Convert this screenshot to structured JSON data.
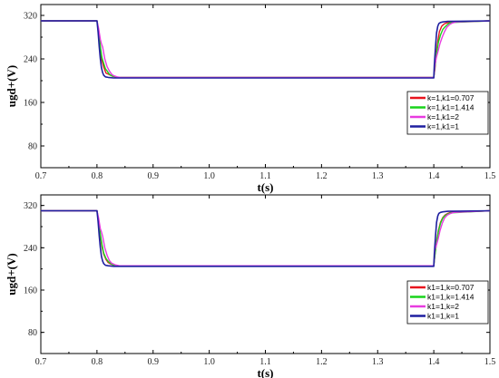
{
  "chart_data": [
    {
      "type": "line",
      "xlabel": "t(s)",
      "ylabel": "ugd+(V)",
      "xlim": [
        0.7,
        1.5
      ],
      "ylim": [
        40,
        340
      ],
      "xticks": [
        "0.7",
        "0.8",
        "0.9",
        "1.0",
        "1.1",
        "1.2",
        "1.3",
        "1.4",
        "1.5"
      ],
      "yticks": [
        "80",
        "160",
        "240",
        "320"
      ],
      "grid": false,
      "legend_position": "bottom-right",
      "series": [
        {
          "name": "k=1,k1=0.707",
          "color": "#e8141d",
          "x": [
            0.7,
            0.8,
            0.803,
            0.806,
            0.808,
            0.812,
            0.816,
            0.82,
            0.824,
            0.828,
            0.832,
            0.84,
            1.4,
            1.402,
            1.404,
            1.407,
            1.41,
            1.414,
            1.418,
            1.422,
            1.427,
            1.432,
            1.5
          ],
          "y": [
            310,
            310,
            292,
            262,
            240,
            225,
            214,
            212,
            210,
            208,
            207,
            206,
            206,
            222,
            246,
            272,
            290,
            300,
            304,
            306,
            307,
            308,
            310
          ]
        },
        {
          "name": "k=1,k1=1.414",
          "color": "#19d31c",
          "x": [
            0.7,
            0.8,
            0.803,
            0.806,
            0.809,
            0.812,
            0.815,
            0.818,
            0.822,
            0.826,
            0.83,
            0.836,
            1.4,
            1.402,
            1.405,
            1.408,
            1.412,
            1.416,
            1.42,
            1.424,
            1.428,
            1.433,
            1.5
          ],
          "y": [
            310,
            310,
            292,
            262,
            242,
            232,
            222,
            218,
            212,
            209,
            208,
            206,
            206,
            226,
            250,
            270,
            284,
            294,
            299,
            303,
            306,
            307,
            310
          ]
        },
        {
          "name": "k=1,k1=2",
          "color": "#e83be0",
          "x": [
            0.7,
            0.8,
            0.803,
            0.806,
            0.808,
            0.81,
            0.814,
            0.818,
            0.822,
            0.826,
            0.83,
            0.836,
            0.842,
            1.4,
            1.402,
            1.405,
            1.408,
            1.411,
            1.415,
            1.419,
            1.423,
            1.428,
            1.433,
            1.44,
            1.5
          ],
          "y": [
            310,
            310,
            296,
            276,
            268,
            262,
            240,
            226,
            218,
            212,
            209,
            207,
            206,
            206,
            230,
            244,
            256,
            268,
            280,
            290,
            298,
            303,
            306,
            308,
            310
          ]
        },
        {
          "name": "k=1,k1=1",
          "color": "#1f1fa0",
          "x": [
            0.7,
            0.8,
            0.802,
            0.804,
            0.806,
            0.808,
            0.81,
            0.812,
            0.815,
            0.82,
            0.83,
            1.4,
            1.401,
            1.403,
            1.405,
            1.407,
            1.409,
            1.412,
            1.416,
            1.425,
            1.5
          ],
          "y": [
            310,
            310,
            290,
            262,
            240,
            224,
            215,
            210,
            207,
            206,
            205,
            205,
            228,
            262,
            288,
            300,
            305,
            307,
            308,
            309,
            310
          ]
        }
      ]
    },
    {
      "type": "line",
      "xlabel": "t(s)",
      "ylabel": "ugd+(V)",
      "xlim": [
        0.7,
        1.5
      ],
      "ylim": [
        40,
        340
      ],
      "xticks": [
        "0.7",
        "0.8",
        "0.9",
        "1.0",
        "1.1",
        "1.2",
        "1.3",
        "1.4",
        "1.5"
      ],
      "yticks": [
        "80",
        "160",
        "240",
        "320"
      ],
      "grid": false,
      "legend_position": "bottom-right",
      "series": [
        {
          "name": "k1=1,k=0.707",
          "color": "#e8141d",
          "x": [
            0.7,
            0.8,
            0.803,
            0.806,
            0.809,
            0.812,
            0.816,
            0.82,
            0.825,
            0.83,
            0.838,
            1.4,
            1.402,
            1.405,
            1.408,
            1.412,
            1.416,
            1.42,
            1.425,
            1.43,
            1.5
          ],
          "y": [
            310,
            310,
            290,
            262,
            242,
            228,
            218,
            212,
            209,
            207,
            206,
            206,
            228,
            252,
            272,
            288,
            297,
            302,
            305,
            307,
            310
          ]
        },
        {
          "name": "k1=1,k=1.414",
          "color": "#19d31c",
          "x": [
            0.7,
            0.8,
            0.803,
            0.806,
            0.809,
            0.812,
            0.816,
            0.82,
            0.825,
            0.83,
            0.838,
            1.4,
            1.402,
            1.405,
            1.408,
            1.412,
            1.416,
            1.42,
            1.425,
            1.43,
            1.5
          ],
          "y": [
            310,
            310,
            292,
            266,
            246,
            230,
            220,
            214,
            210,
            207,
            206,
            206,
            226,
            250,
            270,
            286,
            296,
            301,
            304,
            306,
            310
          ]
        },
        {
          "name": "k1=1,k=2",
          "color": "#e83be0",
          "x": [
            0.7,
            0.8,
            0.803,
            0.806,
            0.808,
            0.81,
            0.814,
            0.818,
            0.822,
            0.826,
            0.832,
            0.84,
            1.4,
            1.402,
            1.405,
            1.408,
            1.411,
            1.415,
            1.419,
            1.424,
            1.43,
            1.436,
            1.5
          ],
          "y": [
            310,
            310,
            296,
            276,
            270,
            262,
            240,
            226,
            216,
            211,
            208,
            206,
            206,
            236,
            246,
            258,
            272,
            286,
            296,
            302,
            305,
            307,
            310
          ]
        },
        {
          "name": "k1=1,k=1",
          "color": "#1f1fa0",
          "x": [
            0.7,
            0.8,
            0.802,
            0.804,
            0.806,
            0.808,
            0.81,
            0.812,
            0.815,
            0.82,
            0.83,
            1.4,
            1.401,
            1.403,
            1.405,
            1.407,
            1.409,
            1.412,
            1.416,
            1.425,
            1.5
          ],
          "y": [
            310,
            310,
            290,
            262,
            240,
            224,
            215,
            210,
            207,
            206,
            205,
            205,
            228,
            262,
            288,
            300,
            305,
            307,
            308,
            309,
            310
          ]
        }
      ]
    }
  ]
}
